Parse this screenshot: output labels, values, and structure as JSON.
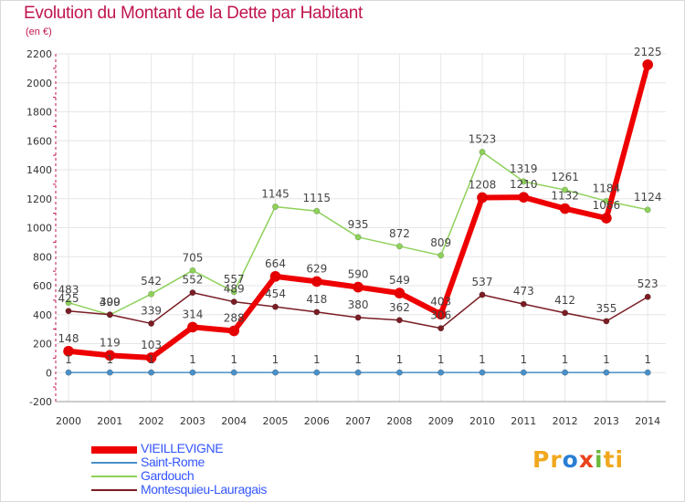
{
  "title": "Evolution du Montant de la Dette par Habitant",
  "subtitle": "(en €)",
  "logo": {
    "parts": [
      "Pr",
      "o",
      "x",
      "i",
      "ti"
    ],
    "colors": [
      "#f0a81e",
      "#2a7fd4",
      "#e8431c",
      "#6ab93b",
      "#f0a81e"
    ]
  },
  "chart_data": {
    "type": "line",
    "x": [
      2000,
      2001,
      2002,
      2003,
      2004,
      2005,
      2006,
      2007,
      2008,
      2009,
      2010,
      2011,
      2012,
      2013,
      2014
    ],
    "ylim": [
      -200,
      2200
    ],
    "yticks": [
      -200,
      0,
      200,
      400,
      600,
      800,
      1000,
      1200,
      1400,
      1600,
      1800,
      2000,
      2200
    ],
    "grid": true,
    "legend_position": "bottom-left",
    "series": [
      {
        "name": "Saint-Rome",
        "color": "#4a90c8",
        "width": 1.5,
        "values": [
          1,
          1,
          1,
          1,
          1,
          1,
          1,
          1,
          1,
          1,
          1,
          1,
          1,
          1,
          1
        ]
      },
      {
        "name": "Gardouch",
        "color": "#8ed15a",
        "width": 1.5,
        "values": [
          483,
          399,
          542,
          705,
          557,
          1145,
          1115,
          935,
          872,
          809,
          1523,
          1319,
          1261,
          1184,
          1124
        ]
      },
      {
        "name": "Montesquieu-Lauragais",
        "color": "#7a1d24",
        "width": 1.5,
        "values": [
          425,
          400,
          339,
          552,
          489,
          454,
          418,
          380,
          362,
          306,
          537,
          473,
          412,
          355,
          523
        ]
      },
      {
        "name": "VIEILLEVIGNE",
        "color": "#ee0000",
        "width": 6,
        "values": [
          148,
          119,
          103,
          314,
          288,
          664,
          629,
          590,
          549,
          403,
          1208,
          1210,
          1132,
          1066,
          2125
        ]
      }
    ]
  }
}
